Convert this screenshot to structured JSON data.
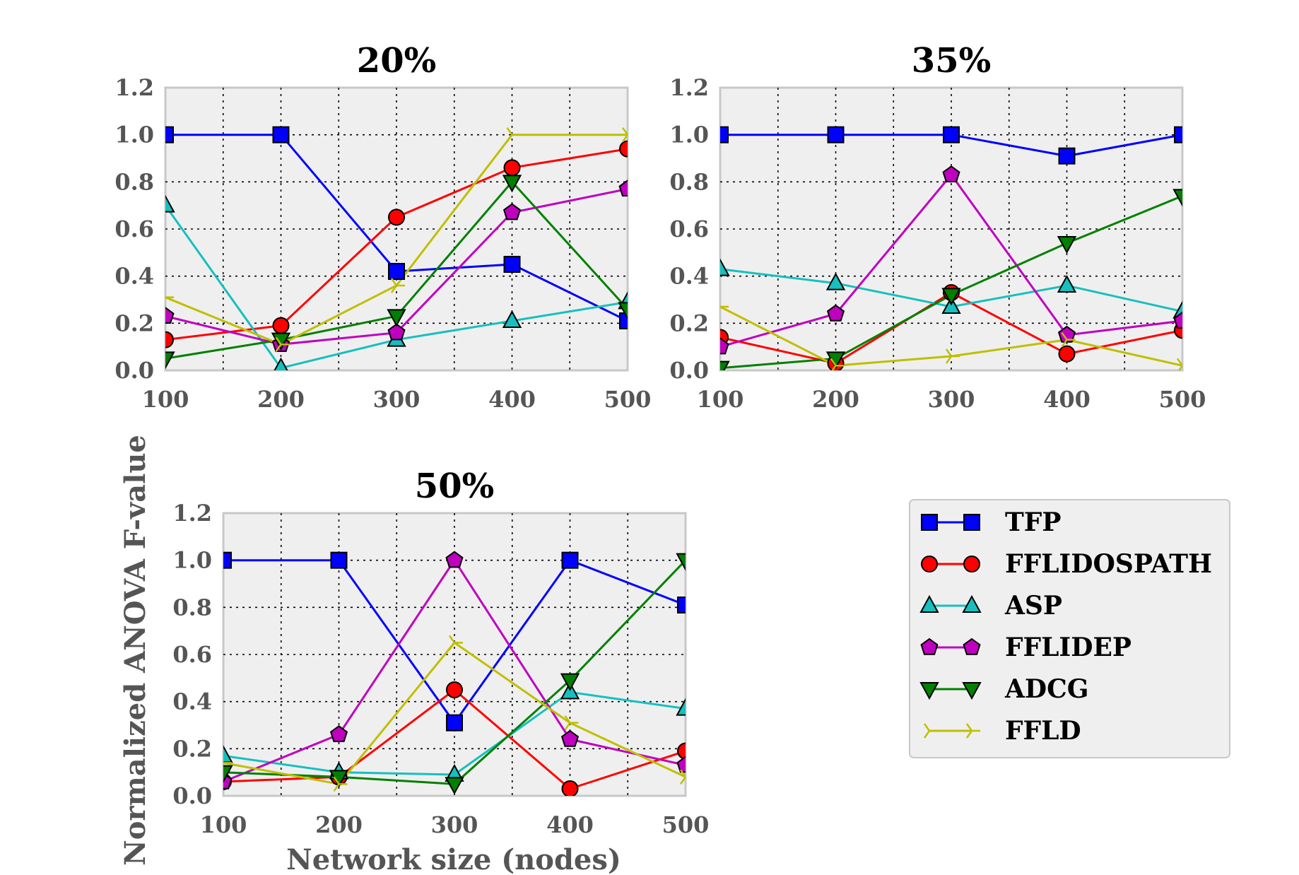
{
  "figure": {
    "ylabel": "Normalized ANOVA F-value",
    "xlabel": "Network size (nodes)"
  },
  "legend": [
    {
      "name": "TFP",
      "color": "#0000ff",
      "marker": "square"
    },
    {
      "name": "FFLIDOSPATH",
      "color": "#ff0000",
      "marker": "circle"
    },
    {
      "name": "ASP",
      "color": "#17bfbf",
      "marker": "triangle-up"
    },
    {
      "name": "FFLIDEP",
      "color": "#bf00bf",
      "marker": "pentagon"
    },
    {
      "name": "ADCG",
      "color": "#008000",
      "marker": "triangle-down"
    },
    {
      "name": "FFLD",
      "color": "#bfbf00",
      "marker": "tri-right"
    }
  ],
  "chart_data": [
    {
      "type": "line",
      "title": "20%",
      "x": [
        100,
        200,
        300,
        400,
        500
      ],
      "xlim": [
        100,
        500
      ],
      "ylim": [
        0.0,
        1.2
      ],
      "xticks": [
        "100",
        "200",
        "300",
        "400",
        "500"
      ],
      "yticks": [
        "0.0",
        "0.2",
        "0.4",
        "0.6",
        "0.8",
        "1.0",
        "1.2"
      ],
      "grid": true,
      "series": [
        {
          "name": "TFP",
          "values": [
            1.0,
            1.0,
            0.42,
            0.45,
            0.21
          ]
        },
        {
          "name": "FFLIDOSPATH",
          "values": [
            0.13,
            0.19,
            0.65,
            0.86,
            0.94
          ]
        },
        {
          "name": "ASP",
          "values": [
            0.7,
            0.01,
            0.13,
            0.21,
            0.29
          ]
        },
        {
          "name": "FFLIDEP",
          "values": [
            0.23,
            0.11,
            0.16,
            0.67,
            0.77
          ]
        },
        {
          "name": "ADCG",
          "values": [
            0.05,
            0.13,
            0.23,
            0.8,
            0.26
          ]
        },
        {
          "name": "FFLD",
          "values": [
            0.31,
            0.11,
            0.36,
            1.0,
            1.0
          ]
        }
      ]
    },
    {
      "type": "line",
      "title": "35%",
      "x": [
        100,
        200,
        300,
        400,
        500
      ],
      "xlim": [
        100,
        500
      ],
      "ylim": [
        0.0,
        1.2
      ],
      "xticks": [
        "100",
        "200",
        "300",
        "400",
        "500"
      ],
      "yticks": [
        "0.0",
        "0.2",
        "0.4",
        "0.6",
        "0.8",
        "1.0",
        "1.2"
      ],
      "grid": true,
      "series": [
        {
          "name": "TFP",
          "values": [
            1.0,
            1.0,
            1.0,
            0.91,
            1.0
          ]
        },
        {
          "name": "FFLIDOSPATH",
          "values": [
            0.14,
            0.03,
            0.33,
            0.07,
            0.17
          ]
        },
        {
          "name": "ASP",
          "values": [
            0.43,
            0.37,
            0.27,
            0.36,
            0.25
          ]
        },
        {
          "name": "FFLIDEP",
          "values": [
            0.1,
            0.24,
            0.83,
            0.15,
            0.21
          ]
        },
        {
          "name": "ADCG",
          "values": [
            0.01,
            0.05,
            0.32,
            0.54,
            0.74
          ]
        },
        {
          "name": "FFLD",
          "values": [
            0.27,
            0.02,
            0.06,
            0.13,
            0.02
          ]
        }
      ]
    },
    {
      "type": "line",
      "title": "50%",
      "x": [
        100,
        200,
        300,
        400,
        500
      ],
      "xlim": [
        100,
        500
      ],
      "ylim": [
        0.0,
        1.2
      ],
      "xticks": [
        "100",
        "200",
        "300",
        "400",
        "500"
      ],
      "yticks": [
        "0.0",
        "0.2",
        "0.4",
        "0.6",
        "0.8",
        "1.0",
        "1.2"
      ],
      "grid": true,
      "series": [
        {
          "name": "TFP",
          "values": [
            1.0,
            1.0,
            0.31,
            1.0,
            0.81
          ]
        },
        {
          "name": "FFLIDOSPATH",
          "values": [
            0.06,
            0.08,
            0.45,
            0.03,
            0.19
          ]
        },
        {
          "name": "ASP",
          "values": [
            0.17,
            0.1,
            0.09,
            0.44,
            0.37
          ]
        },
        {
          "name": "FFLIDEP",
          "values": [
            0.06,
            0.26,
            1.0,
            0.24,
            0.13
          ]
        },
        {
          "name": "ADCG",
          "values": [
            0.1,
            0.08,
            0.05,
            0.49,
            1.0
          ]
        },
        {
          "name": "FFLD",
          "values": [
            0.14,
            0.05,
            0.65,
            0.31,
            0.08
          ]
        }
      ]
    }
  ]
}
